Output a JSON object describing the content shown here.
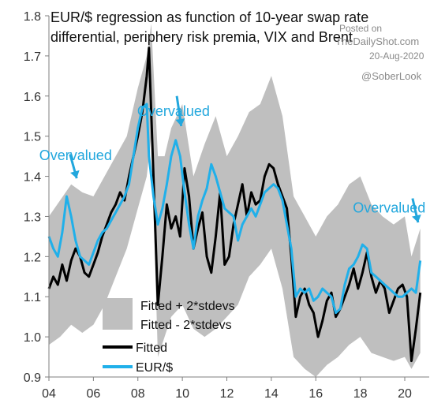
{
  "chart_data": {
    "type": "line",
    "title_lines": [
      "EUR/$ regression as function of 10-year swap rate",
      "differential, periphery risk premia, VIX and Brent"
    ],
    "source": [
      "Posted on",
      "TheDailyShot.com",
      "20-Aug-2020",
      "@SoberLook"
    ],
    "x_tick_labels": [
      "04",
      "06",
      "08",
      "10",
      "12",
      "14",
      "16",
      "18",
      "20"
    ],
    "x_ticks": [
      2004,
      2006,
      2008,
      2010,
      2012,
      2014,
      2016,
      2018,
      2020
    ],
    "xlim": [
      2004,
      2021.1
    ],
    "y_tick_labels": [
      "0.9",
      "1.0",
      "1.1",
      "1.2",
      "1.3",
      "1.4",
      "1.5",
      "1.6",
      "1.7",
      "1.8"
    ],
    "y_ticks": [
      0.9,
      1.0,
      1.1,
      1.2,
      1.3,
      1.4,
      1.5,
      1.6,
      1.7,
      1.8
    ],
    "ylim": [
      0.9,
      1.8
    ],
    "grid": false,
    "legend_position": "bottom-left",
    "legend": {
      "band_upper": "Fitted + 2*stdevs",
      "band_lower": "Fitted - 2*stdevs",
      "fitted": "Fitted",
      "eurusd": "EUR/$"
    },
    "annotations": [
      {
        "text": "Overvalued",
        "x": 2005.2,
        "y": 1.44
      },
      {
        "text": "Overvalued",
        "x": 2009.6,
        "y": 1.55
      },
      {
        "text": "Overvalued",
        "x": 2019.3,
        "y": 1.31
      }
    ],
    "colors": {
      "band": "#bfbfbf",
      "fitted": "#000000",
      "eurusd": "#20b0ea",
      "annotation": "#22a7dd"
    },
    "series": [
      {
        "name": "Fitted",
        "x": [
          2004.0,
          2004.2,
          2004.4,
          2004.6,
          2004.8,
          2005.0,
          2005.2,
          2005.4,
          2005.6,
          2005.8,
          2006.0,
          2006.2,
          2006.4,
          2006.6,
          2006.8,
          2007.0,
          2007.2,
          2007.4,
          2007.6,
          2007.8,
          2008.0,
          2008.2,
          2008.4,
          2008.5,
          2008.7,
          2008.9,
          2009.1,
          2009.3,
          2009.5,
          2009.7,
          2009.9,
          2010.1,
          2010.3,
          2010.5,
          2010.7,
          2010.9,
          2011.1,
          2011.3,
          2011.5,
          2011.7,
          2011.9,
          2012.1,
          2012.3,
          2012.5,
          2012.7,
          2012.9,
          2013.1,
          2013.3,
          2013.5,
          2013.7,
          2013.9,
          2014.1,
          2014.3,
          2014.5,
          2014.7,
          2014.9,
          2015.1,
          2015.3,
          2015.5,
          2015.7,
          2015.9,
          2016.1,
          2016.3,
          2016.5,
          2016.7,
          2016.9,
          2017.1,
          2017.3,
          2017.5,
          2017.7,
          2017.9,
          2018.1,
          2018.3,
          2018.5,
          2018.7,
          2018.9,
          2019.1,
          2019.3,
          2019.5,
          2019.7,
          2019.9,
          2020.1,
          2020.3,
          2020.5,
          2020.7
        ],
        "y": [
          1.12,
          1.15,
          1.13,
          1.18,
          1.14,
          1.19,
          1.22,
          1.2,
          1.16,
          1.15,
          1.18,
          1.21,
          1.25,
          1.28,
          1.31,
          1.33,
          1.36,
          1.34,
          1.4,
          1.45,
          1.5,
          1.56,
          1.65,
          1.72,
          1.4,
          1.08,
          1.2,
          1.33,
          1.27,
          1.3,
          1.25,
          1.42,
          1.35,
          1.22,
          1.27,
          1.31,
          1.2,
          1.16,
          1.25,
          1.36,
          1.18,
          1.2,
          1.28,
          1.33,
          1.38,
          1.3,
          1.36,
          1.33,
          1.34,
          1.4,
          1.43,
          1.42,
          1.38,
          1.35,
          1.32,
          1.2,
          1.05,
          1.1,
          1.12,
          1.08,
          1.06,
          1.0,
          1.04,
          1.09,
          1.11,
          1.05,
          1.07,
          1.1,
          1.13,
          1.17,
          1.12,
          1.16,
          1.21,
          1.15,
          1.11,
          1.14,
          1.12,
          1.06,
          1.09,
          1.12,
          1.13,
          1.1,
          0.94,
          1.02,
          1.11
        ]
      },
      {
        "name": "EUR/$",
        "x": [
          2004.0,
          2004.2,
          2004.4,
          2004.6,
          2004.8,
          2005.0,
          2005.2,
          2005.4,
          2005.6,
          2005.8,
          2006.0,
          2006.2,
          2006.4,
          2006.6,
          2006.8,
          2007.0,
          2007.2,
          2007.4,
          2007.6,
          2007.8,
          2008.0,
          2008.2,
          2008.4,
          2008.5,
          2008.7,
          2008.9,
          2009.1,
          2009.3,
          2009.5,
          2009.7,
          2009.9,
          2010.1,
          2010.3,
          2010.5,
          2010.7,
          2010.9,
          2011.1,
          2011.3,
          2011.5,
          2011.7,
          2011.9,
          2012.1,
          2012.3,
          2012.5,
          2012.7,
          2012.9,
          2013.1,
          2013.3,
          2013.5,
          2013.7,
          2013.9,
          2014.1,
          2014.3,
          2014.5,
          2014.7,
          2014.9,
          2015.1,
          2015.3,
          2015.5,
          2015.7,
          2015.9,
          2016.1,
          2016.3,
          2016.5,
          2016.7,
          2016.9,
          2017.1,
          2017.3,
          2017.5,
          2017.7,
          2017.9,
          2018.1,
          2018.3,
          2018.5,
          2018.7,
          2018.9,
          2019.1,
          2019.3,
          2019.5,
          2019.7,
          2019.9,
          2020.1,
          2020.3,
          2020.5,
          2020.7
        ],
        "y": [
          1.25,
          1.22,
          1.2,
          1.26,
          1.35,
          1.3,
          1.24,
          1.2,
          1.19,
          1.18,
          1.21,
          1.24,
          1.26,
          1.27,
          1.29,
          1.31,
          1.33,
          1.35,
          1.38,
          1.45,
          1.52,
          1.57,
          1.58,
          1.45,
          1.35,
          1.28,
          1.32,
          1.38,
          1.45,
          1.49,
          1.45,
          1.36,
          1.28,
          1.22,
          1.3,
          1.34,
          1.37,
          1.43,
          1.4,
          1.36,
          1.32,
          1.31,
          1.3,
          1.24,
          1.28,
          1.3,
          1.32,
          1.3,
          1.33,
          1.36,
          1.37,
          1.38,
          1.37,
          1.34,
          1.28,
          1.22,
          1.1,
          1.12,
          1.11,
          1.12,
          1.09,
          1.1,
          1.12,
          1.11,
          1.1,
          1.06,
          1.07,
          1.13,
          1.17,
          1.18,
          1.2,
          1.23,
          1.22,
          1.16,
          1.15,
          1.14,
          1.13,
          1.12,
          1.11,
          1.1,
          1.1,
          1.11,
          1.12,
          1.11,
          1.19
        ]
      }
    ],
    "band": {
      "x": [
        2004.0,
        2004.5,
        2005.0,
        2005.5,
        2006.0,
        2006.5,
        2007.0,
        2007.5,
        2008.0,
        2008.4,
        2008.6,
        2008.9,
        2009.2,
        2009.5,
        2010.0,
        2010.5,
        2011.0,
        2011.5,
        2012.0,
        2012.5,
        2013.0,
        2013.5,
        2014.0,
        2014.5,
        2015.0,
        2015.5,
        2016.0,
        2016.5,
        2017.0,
        2017.5,
        2018.0,
        2018.5,
        2019.0,
        2019.5,
        2020.0,
        2020.3,
        2020.7
      ],
      "upper": [
        1.3,
        1.34,
        1.38,
        1.36,
        1.35,
        1.4,
        1.45,
        1.5,
        1.62,
        1.7,
        1.78,
        1.45,
        1.45,
        1.52,
        1.58,
        1.4,
        1.48,
        1.55,
        1.45,
        1.5,
        1.56,
        1.58,
        1.65,
        1.55,
        1.35,
        1.3,
        1.25,
        1.3,
        1.33,
        1.38,
        1.4,
        1.33,
        1.3,
        1.28,
        1.3,
        1.2,
        1.27
      ],
      "lower": [
        0.98,
        1.0,
        1.03,
        1.01,
        1.03,
        1.08,
        1.15,
        1.22,
        1.32,
        1.4,
        1.5,
        0.95,
        1.0,
        1.05,
        1.08,
        1.02,
        1.0,
        1.02,
        1.05,
        1.08,
        1.15,
        1.18,
        1.22,
        1.12,
        0.95,
        0.92,
        0.9,
        0.93,
        0.95,
        0.98,
        1.0,
        0.96,
        0.95,
        0.94,
        0.95,
        0.92,
        0.96
      ]
    }
  }
}
